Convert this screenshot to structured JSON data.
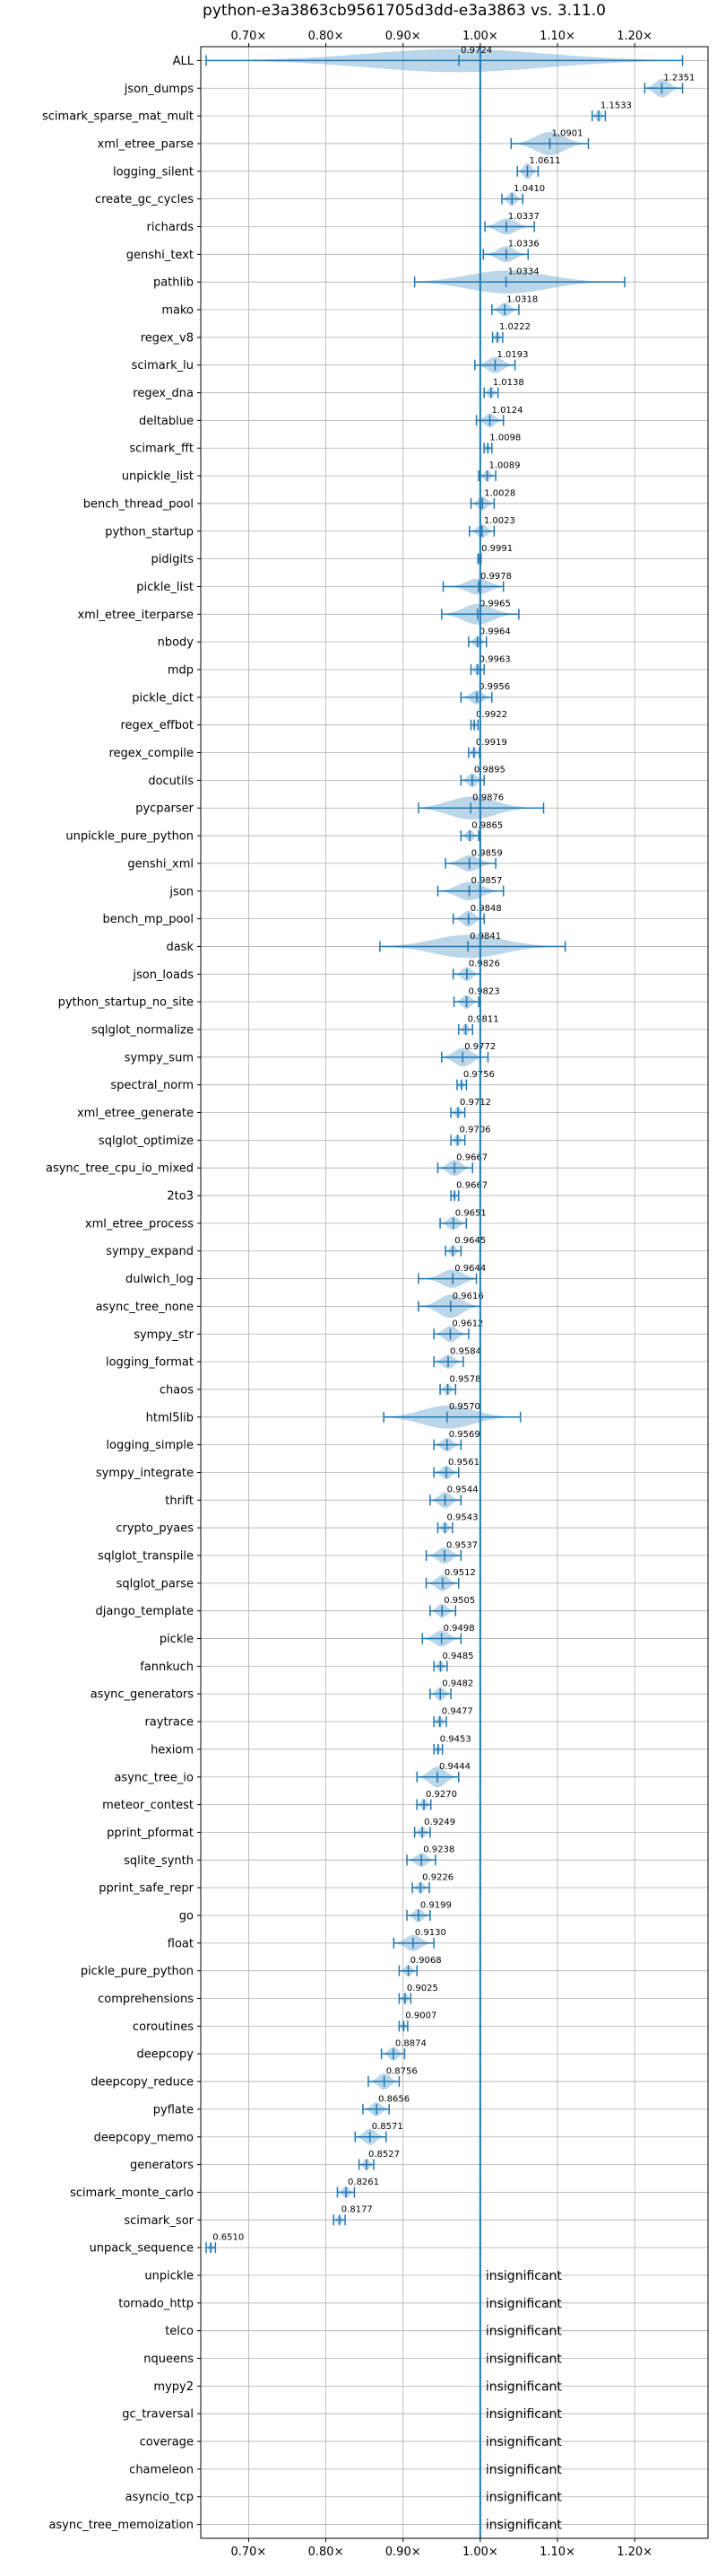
{
  "chart_data": {
    "type": "violin",
    "title": "python-e3a3863cb9561705d3dd-e3a3863 vs. 3.11.0",
    "xlim": [
      0.638,
      1.295
    ],
    "xticks": [
      "0.70×",
      "0.80×",
      "0.90×",
      "1.00×",
      "1.10×",
      "1.20×"
    ],
    "reference_line": 1.0,
    "grid": true,
    "colors": {
      "violin": "#1f77b4",
      "reference": "#1f77b4"
    },
    "benchmarks": [
      {
        "name": "ALL",
        "value": 0.9724,
        "label": "0.9724",
        "lo": 0.645,
        "hi": 1.262,
        "width": 1.0
      },
      {
        "name": "json_dumps",
        "value": 1.2351,
        "label": "1.2351",
        "lo": 1.213,
        "hi": 1.262,
        "width": 0.8
      },
      {
        "name": "scimark_sparse_mat_mult",
        "value": 1.1533,
        "label": "1.1533",
        "lo": 1.145,
        "hi": 1.162,
        "width": 0.5
      },
      {
        "name": "xml_etree_parse",
        "value": 1.0901,
        "label": "1.0901",
        "lo": 1.04,
        "hi": 1.14,
        "width": 1.0
      },
      {
        "name": "logging_silent",
        "value": 1.0611,
        "label": "1.0611",
        "lo": 1.048,
        "hi": 1.075,
        "width": 0.7
      },
      {
        "name": "create_gc_cycles",
        "value": 1.041,
        "label": "1.0410",
        "lo": 1.028,
        "hi": 1.055,
        "width": 0.6
      },
      {
        "name": "richards",
        "value": 1.0337,
        "label": "1.0337",
        "lo": 1.006,
        "hi": 1.07,
        "width": 0.7
      },
      {
        "name": "genshi_text",
        "value": 1.0336,
        "label": "1.0336",
        "lo": 1.004,
        "hi": 1.062,
        "width": 0.7
      },
      {
        "name": "pathlib",
        "value": 1.0334,
        "label": "1.0334",
        "lo": 0.915,
        "hi": 1.187,
        "width": 1.0
      },
      {
        "name": "mako",
        "value": 1.0318,
        "label": "1.0318",
        "lo": 1.015,
        "hi": 1.05,
        "width": 0.6
      },
      {
        "name": "regex_v8",
        "value": 1.0222,
        "label": "1.0222",
        "lo": 1.016,
        "hi": 1.029,
        "width": 0.5
      },
      {
        "name": "scimark_lu",
        "value": 1.0193,
        "label": "1.0193",
        "lo": 0.993,
        "hi": 1.045,
        "width": 0.7
      },
      {
        "name": "regex_dna",
        "value": 1.0138,
        "label": "1.0138",
        "lo": 1.005,
        "hi": 1.023,
        "width": 0.5
      },
      {
        "name": "deltablue",
        "value": 1.0124,
        "label": "1.0124",
        "lo": 0.995,
        "hi": 1.03,
        "width": 0.6
      },
      {
        "name": "scimark_fft",
        "value": 1.0098,
        "label": "1.0098",
        "lo": 1.005,
        "hi": 1.015,
        "width": 0.4
      },
      {
        "name": "unpickle_list",
        "value": 1.0089,
        "label": "1.0089",
        "lo": 0.998,
        "hi": 1.02,
        "width": 0.5
      },
      {
        "name": "bench_thread_pool",
        "value": 1.0028,
        "label": "1.0028",
        "lo": 0.988,
        "hi": 1.018,
        "width": 0.6
      },
      {
        "name": "python_startup",
        "value": 1.0023,
        "label": "1.0023",
        "lo": 0.986,
        "hi": 1.018,
        "width": 0.6
      },
      {
        "name": "pidigits",
        "value": 0.9991,
        "label": "0.9991",
        "lo": 0.997,
        "hi": 1.001,
        "width": 0.3
      },
      {
        "name": "pickle_list",
        "value": 0.9978,
        "label": "0.9978",
        "lo": 0.952,
        "hi": 1.03,
        "width": 0.7
      },
      {
        "name": "xml_etree_iterparse",
        "value": 0.9965,
        "label": "0.9965",
        "lo": 0.95,
        "hi": 1.05,
        "width": 0.9
      },
      {
        "name": "nbody",
        "value": 0.9964,
        "label": "0.9964",
        "lo": 0.985,
        "hi": 1.008,
        "width": 0.5
      },
      {
        "name": "mdp",
        "value": 0.9963,
        "label": "0.9963",
        "lo": 0.988,
        "hi": 1.005,
        "width": 0.5
      },
      {
        "name": "pickle_dict",
        "value": 0.9956,
        "label": "0.9956",
        "lo": 0.975,
        "hi": 1.015,
        "width": 0.6
      },
      {
        "name": "regex_effbot",
        "value": 0.9922,
        "label": "0.9922",
        "lo": 0.988,
        "hi": 0.997,
        "width": 0.4
      },
      {
        "name": "regex_compile",
        "value": 0.9919,
        "label": "0.9919",
        "lo": 0.985,
        "hi": 0.999,
        "width": 0.5
      },
      {
        "name": "docutils",
        "value": 0.9895,
        "label": "0.9895",
        "lo": 0.975,
        "hi": 1.005,
        "width": 0.6
      },
      {
        "name": "pycparser",
        "value": 0.9876,
        "label": "0.9876",
        "lo": 0.92,
        "hi": 1.082,
        "width": 1.0
      },
      {
        "name": "unpickle_pure_python",
        "value": 0.9865,
        "label": "0.9865",
        "lo": 0.975,
        "hi": 0.998,
        "width": 0.5
      },
      {
        "name": "genshi_xml",
        "value": 0.9859,
        "label": "0.9859",
        "lo": 0.955,
        "hi": 1.02,
        "width": 0.7
      },
      {
        "name": "json",
        "value": 0.9857,
        "label": "0.9857",
        "lo": 0.945,
        "hi": 1.03,
        "width": 0.8
      },
      {
        "name": "bench_mp_pool",
        "value": 0.9848,
        "label": "0.9848",
        "lo": 0.965,
        "hi": 1.005,
        "width": 0.7
      },
      {
        "name": "dask",
        "value": 0.9841,
        "label": "0.9841",
        "lo": 0.87,
        "hi": 1.11,
        "width": 1.0
      },
      {
        "name": "json_loads",
        "value": 0.9826,
        "label": "0.9826",
        "lo": 0.965,
        "hi": 1.0,
        "width": 0.6
      },
      {
        "name": "python_startup_no_site",
        "value": 0.9823,
        "label": "0.9823",
        "lo": 0.966,
        "hi": 0.998,
        "width": 0.6
      },
      {
        "name": "sqlglot_normalize",
        "value": 0.9811,
        "label": "0.9811",
        "lo": 0.972,
        "hi": 0.99,
        "width": 0.5
      },
      {
        "name": "sympy_sum",
        "value": 0.9772,
        "label": "0.9772",
        "lo": 0.95,
        "hi": 1.01,
        "width": 0.8
      },
      {
        "name": "spectral_norm",
        "value": 0.9756,
        "label": "0.9756",
        "lo": 0.97,
        "hi": 0.982,
        "width": 0.4
      },
      {
        "name": "xml_etree_generate",
        "value": 0.9712,
        "label": "0.9712",
        "lo": 0.962,
        "hi": 0.98,
        "width": 0.5
      },
      {
        "name": "sqlglot_optimize",
        "value": 0.9706,
        "label": "0.9706",
        "lo": 0.962,
        "hi": 0.98,
        "width": 0.5
      },
      {
        "name": "async_tree_cpu_io_mixed",
        "value": 0.9667,
        "label": "0.9667",
        "lo": 0.945,
        "hi": 0.99,
        "width": 0.7
      },
      {
        "name": "2to3",
        "value": 0.9667,
        "label": "0.9667",
        "lo": 0.962,
        "hi": 0.972,
        "width": 0.4
      },
      {
        "name": "xml_etree_process",
        "value": 0.9651,
        "label": "0.9651",
        "lo": 0.948,
        "hi": 0.982,
        "width": 0.6
      },
      {
        "name": "sympy_expand",
        "value": 0.9645,
        "label": "0.9645",
        "lo": 0.955,
        "hi": 0.975,
        "width": 0.5
      },
      {
        "name": "dulwich_log",
        "value": 0.9644,
        "label": "0.9644",
        "lo": 0.92,
        "hi": 0.995,
        "width": 0.8
      },
      {
        "name": "async_tree_none",
        "value": 0.9616,
        "label": "0.9616",
        "lo": 0.92,
        "hi": 1.0,
        "width": 1.0
      },
      {
        "name": "sympy_str",
        "value": 0.9612,
        "label": "0.9612",
        "lo": 0.94,
        "hi": 0.985,
        "width": 0.7
      },
      {
        "name": "logging_format",
        "value": 0.9584,
        "label": "0.9584",
        "lo": 0.94,
        "hi": 0.978,
        "width": 0.6
      },
      {
        "name": "chaos",
        "value": 0.9578,
        "label": "0.9578",
        "lo": 0.948,
        "hi": 0.968,
        "width": 0.5
      },
      {
        "name": "html5lib",
        "value": 0.957,
        "label": "0.9570",
        "lo": 0.875,
        "hi": 1.052,
        "width": 1.0
      },
      {
        "name": "logging_simple",
        "value": 0.9569,
        "label": "0.9569",
        "lo": 0.94,
        "hi": 0.975,
        "width": 0.6
      },
      {
        "name": "sympy_integrate",
        "value": 0.9561,
        "label": "0.9561",
        "lo": 0.94,
        "hi": 0.972,
        "width": 0.6
      },
      {
        "name": "thrift",
        "value": 0.9544,
        "label": "0.9544",
        "lo": 0.935,
        "hi": 0.975,
        "width": 0.7
      },
      {
        "name": "crypto_pyaes",
        "value": 0.9543,
        "label": "0.9543",
        "lo": 0.945,
        "hi": 0.964,
        "width": 0.5
      },
      {
        "name": "sqlglot_transpile",
        "value": 0.9537,
        "label": "0.9537",
        "lo": 0.93,
        "hi": 0.975,
        "width": 0.7
      },
      {
        "name": "sqlglot_parse",
        "value": 0.9512,
        "label": "0.9512",
        "lo": 0.93,
        "hi": 0.972,
        "width": 0.7
      },
      {
        "name": "django_template",
        "value": 0.9505,
        "label": "0.9505",
        "lo": 0.935,
        "hi": 0.968,
        "width": 0.6
      },
      {
        "name": "pickle",
        "value": 0.9498,
        "label": "0.9498",
        "lo": 0.925,
        "hi": 0.975,
        "width": 0.7
      },
      {
        "name": "fannkuch",
        "value": 0.9485,
        "label": "0.9485",
        "lo": 0.94,
        "hi": 0.957,
        "width": 0.5
      },
      {
        "name": "async_generators",
        "value": 0.9482,
        "label": "0.9482",
        "lo": 0.935,
        "hi": 0.962,
        "width": 0.6
      },
      {
        "name": "raytrace",
        "value": 0.9477,
        "label": "0.9477",
        "lo": 0.94,
        "hi": 0.956,
        "width": 0.5
      },
      {
        "name": "hexiom",
        "value": 0.9453,
        "label": "0.9453",
        "lo": 0.94,
        "hi": 0.951,
        "width": 0.4
      },
      {
        "name": "async_tree_io",
        "value": 0.9444,
        "label": "0.9444",
        "lo": 0.918,
        "hi": 0.972,
        "width": 0.9
      },
      {
        "name": "meteor_contest",
        "value": 0.927,
        "label": "0.9270",
        "lo": 0.918,
        "hi": 0.936,
        "width": 0.5
      },
      {
        "name": "pprint_pformat",
        "value": 0.9249,
        "label": "0.9249",
        "lo": 0.915,
        "hi": 0.935,
        "width": 0.5
      },
      {
        "name": "sqlite_synth",
        "value": 0.9238,
        "label": "0.9238",
        "lo": 0.905,
        "hi": 0.942,
        "width": 0.6
      },
      {
        "name": "pprint_safe_repr",
        "value": 0.9226,
        "label": "0.9226",
        "lo": 0.912,
        "hi": 0.934,
        "width": 0.5
      },
      {
        "name": "go",
        "value": 0.9199,
        "label": "0.9199",
        "lo": 0.905,
        "hi": 0.935,
        "width": 0.6
      },
      {
        "name": "float",
        "value": 0.913,
        "label": "0.9130",
        "lo": 0.888,
        "hi": 0.94,
        "width": 0.7
      },
      {
        "name": "pickle_pure_python",
        "value": 0.9068,
        "label": "0.9068",
        "lo": 0.895,
        "hi": 0.918,
        "width": 0.5
      },
      {
        "name": "comprehensions",
        "value": 0.9025,
        "label": "0.9025",
        "lo": 0.895,
        "hi": 0.91,
        "width": 0.5
      },
      {
        "name": "coroutines",
        "value": 0.9007,
        "label": "0.9007",
        "lo": 0.895,
        "hi": 0.906,
        "width": 0.4
      },
      {
        "name": "deepcopy",
        "value": 0.8874,
        "label": "0.8874",
        "lo": 0.872,
        "hi": 0.902,
        "width": 0.6
      },
      {
        "name": "deepcopy_reduce",
        "value": 0.8756,
        "label": "0.8756",
        "lo": 0.855,
        "hi": 0.895,
        "width": 0.7
      },
      {
        "name": "pyflate",
        "value": 0.8656,
        "label": "0.8656",
        "lo": 0.848,
        "hi": 0.882,
        "width": 0.6
      },
      {
        "name": "deepcopy_memo",
        "value": 0.8571,
        "label": "0.8571",
        "lo": 0.838,
        "hi": 0.878,
        "width": 0.7
      },
      {
        "name": "generators",
        "value": 0.8527,
        "label": "0.8527",
        "lo": 0.843,
        "hi": 0.862,
        "width": 0.5
      },
      {
        "name": "scimark_monte_carlo",
        "value": 0.8261,
        "label": "0.8261",
        "lo": 0.815,
        "hi": 0.837,
        "width": 0.5
      },
      {
        "name": "scimark_sor",
        "value": 0.8177,
        "label": "0.8177",
        "lo": 0.81,
        "hi": 0.825,
        "width": 0.4
      },
      {
        "name": "unpack_sequence",
        "value": 0.651,
        "label": "0.6510",
        "lo": 0.645,
        "hi": 0.657,
        "width": 0.4
      },
      {
        "name": "unpickle",
        "insignificant": true,
        "label": "insignificant"
      },
      {
        "name": "tornado_http",
        "insignificant": true,
        "label": "insignificant"
      },
      {
        "name": "telco",
        "insignificant": true,
        "label": "insignificant"
      },
      {
        "name": "nqueens",
        "insignificant": true,
        "label": "insignificant"
      },
      {
        "name": "mypy2",
        "insignificant": true,
        "label": "insignificant"
      },
      {
        "name": "gc_traversal",
        "insignificant": true,
        "label": "insignificant"
      },
      {
        "name": "coverage",
        "insignificant": true,
        "label": "insignificant"
      },
      {
        "name": "chameleon",
        "insignificant": true,
        "label": "insignificant"
      },
      {
        "name": "asyncio_tcp",
        "insignificant": true,
        "label": "insignificant"
      },
      {
        "name": "async_tree_memoization",
        "insignificant": true,
        "label": "insignificant"
      }
    ]
  }
}
